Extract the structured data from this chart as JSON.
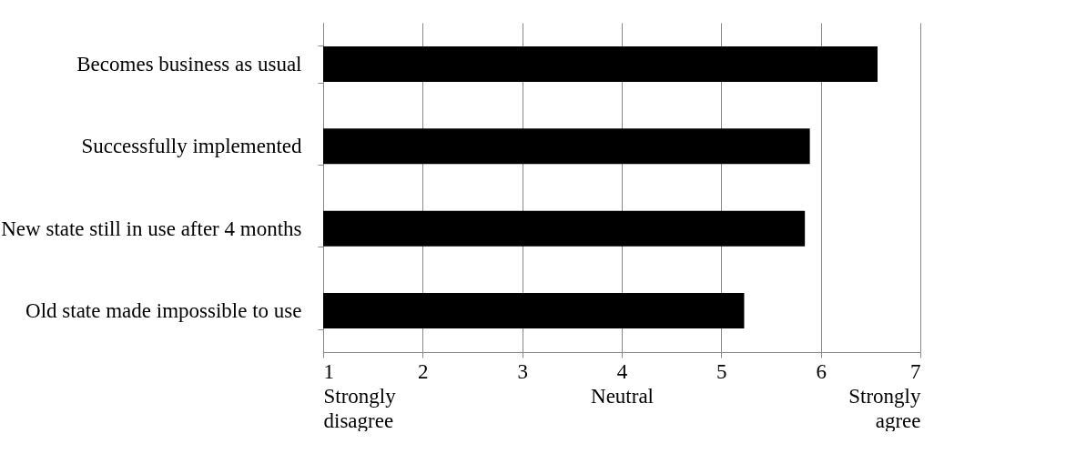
{
  "chart_data": {
    "type": "bar",
    "orientation": "horizontal",
    "categories": [
      "Becomes business as usual",
      "Successfully implemented",
      "New state still in use after 4 months",
      "Old state made impossible to use"
    ],
    "values": [
      6.57,
      5.89,
      5.84,
      5.23
    ],
    "color": "#000000",
    "xlim": [
      1,
      7
    ],
    "xticks": [
      {
        "value": 1,
        "label": "1\nStrongly\ndisagree"
      },
      2,
      3,
      {
        "value": 4,
        "label": "4\nNeutral"
      },
      5,
      6,
      {
        "value": 7,
        "label": "7\nStrongly\nagree"
      }
    ],
    "grid": "x"
  }
}
